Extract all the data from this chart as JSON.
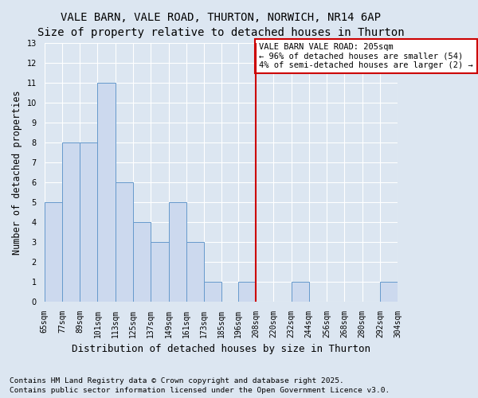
{
  "title_line1": "VALE BARN, VALE ROAD, THURTON, NORWICH, NR14 6AP",
  "title_line2": "Size of property relative to detached houses in Thurton",
  "xlabel": "Distribution of detached houses by size in Thurton",
  "ylabel": "Number of detached properties",
  "footnote_line1": "Contains HM Land Registry data © Crown copyright and database right 2025.",
  "footnote_line2": "Contains public sector information licensed under the Open Government Licence v3.0.",
  "annotation_line1": "VALE BARN VALE ROAD: 205sqm",
  "annotation_line2": "← 96% of detached houses are smaller (54)",
  "annotation_line3": "4% of semi-detached houses are larger (2) →",
  "bin_edges": [
    65,
    77,
    89,
    101,
    113,
    125,
    137,
    149,
    161,
    173,
    185,
    196,
    208,
    220,
    232,
    244,
    256,
    268,
    280,
    292,
    304
  ],
  "bar_heights": [
    5,
    8,
    8,
    11,
    6,
    4,
    3,
    5,
    3,
    1,
    0,
    1,
    0,
    0,
    1,
    0,
    0,
    0,
    0,
    1
  ],
  "bar_labels": [
    "65sqm",
    "77sqm",
    "89sqm",
    "101sqm",
    "113sqm",
    "125sqm",
    "137sqm",
    "149sqm",
    "161sqm",
    "173sqm",
    "185sqm",
    "196sqm",
    "208sqm",
    "220sqm",
    "232sqm",
    "244sqm",
    "256sqm",
    "268sqm",
    "280sqm",
    "292sqm",
    "304sqm"
  ],
  "bar_color": "#ccd9ee",
  "bar_edge_color": "#6699cc",
  "red_line_x": 208,
  "red_line_color": "#cc0000",
  "background_color": "#dce6f1",
  "ylim": [
    0,
    13
  ],
  "yticks": [
    0,
    1,
    2,
    3,
    4,
    5,
    6,
    7,
    8,
    9,
    10,
    11,
    12,
    13
  ],
  "annotation_box_facecolor": "#ffffff",
  "annotation_box_edgecolor": "#cc0000",
  "title_fontsize": 10,
  "subtitle_fontsize": 9.5,
  "ylabel_fontsize": 8.5,
  "xlabel_fontsize": 9,
  "tick_fontsize": 7,
  "annotation_fontsize": 7.5,
  "footnote_fontsize": 6.8
}
